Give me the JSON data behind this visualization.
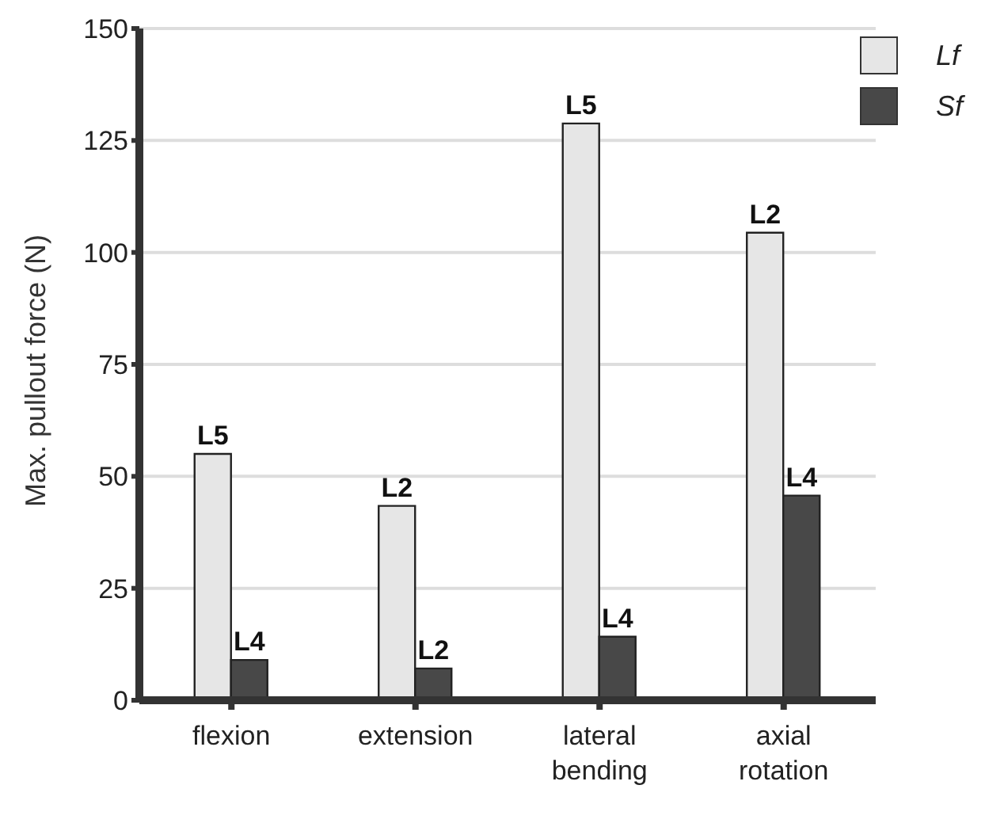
{
  "chart_data": {
    "type": "bar",
    "ylabel": "Max. pullout force (N)",
    "categories": [
      "flexion",
      "extension",
      "lateral bending",
      "axial rotation"
    ],
    "series": [
      {
        "name": "Lf",
        "color": "#e6e6e6",
        "values": [
          55,
          43.4,
          128.8,
          104.4
        ],
        "value_labels": [
          "L5",
          "L2",
          "L5",
          "L2"
        ]
      },
      {
        "name": "Sf",
        "color": "#484848",
        "values": [
          9,
          7.1,
          14.2,
          45.7
        ],
        "value_labels": [
          "L4",
          "L2",
          "L4",
          "L4"
        ]
      }
    ],
    "ylim": [
      0,
      150
    ],
    "yticks": [
      0,
      25,
      50,
      75,
      100,
      125,
      150
    ],
    "grid": "y",
    "legend": "top right"
  }
}
